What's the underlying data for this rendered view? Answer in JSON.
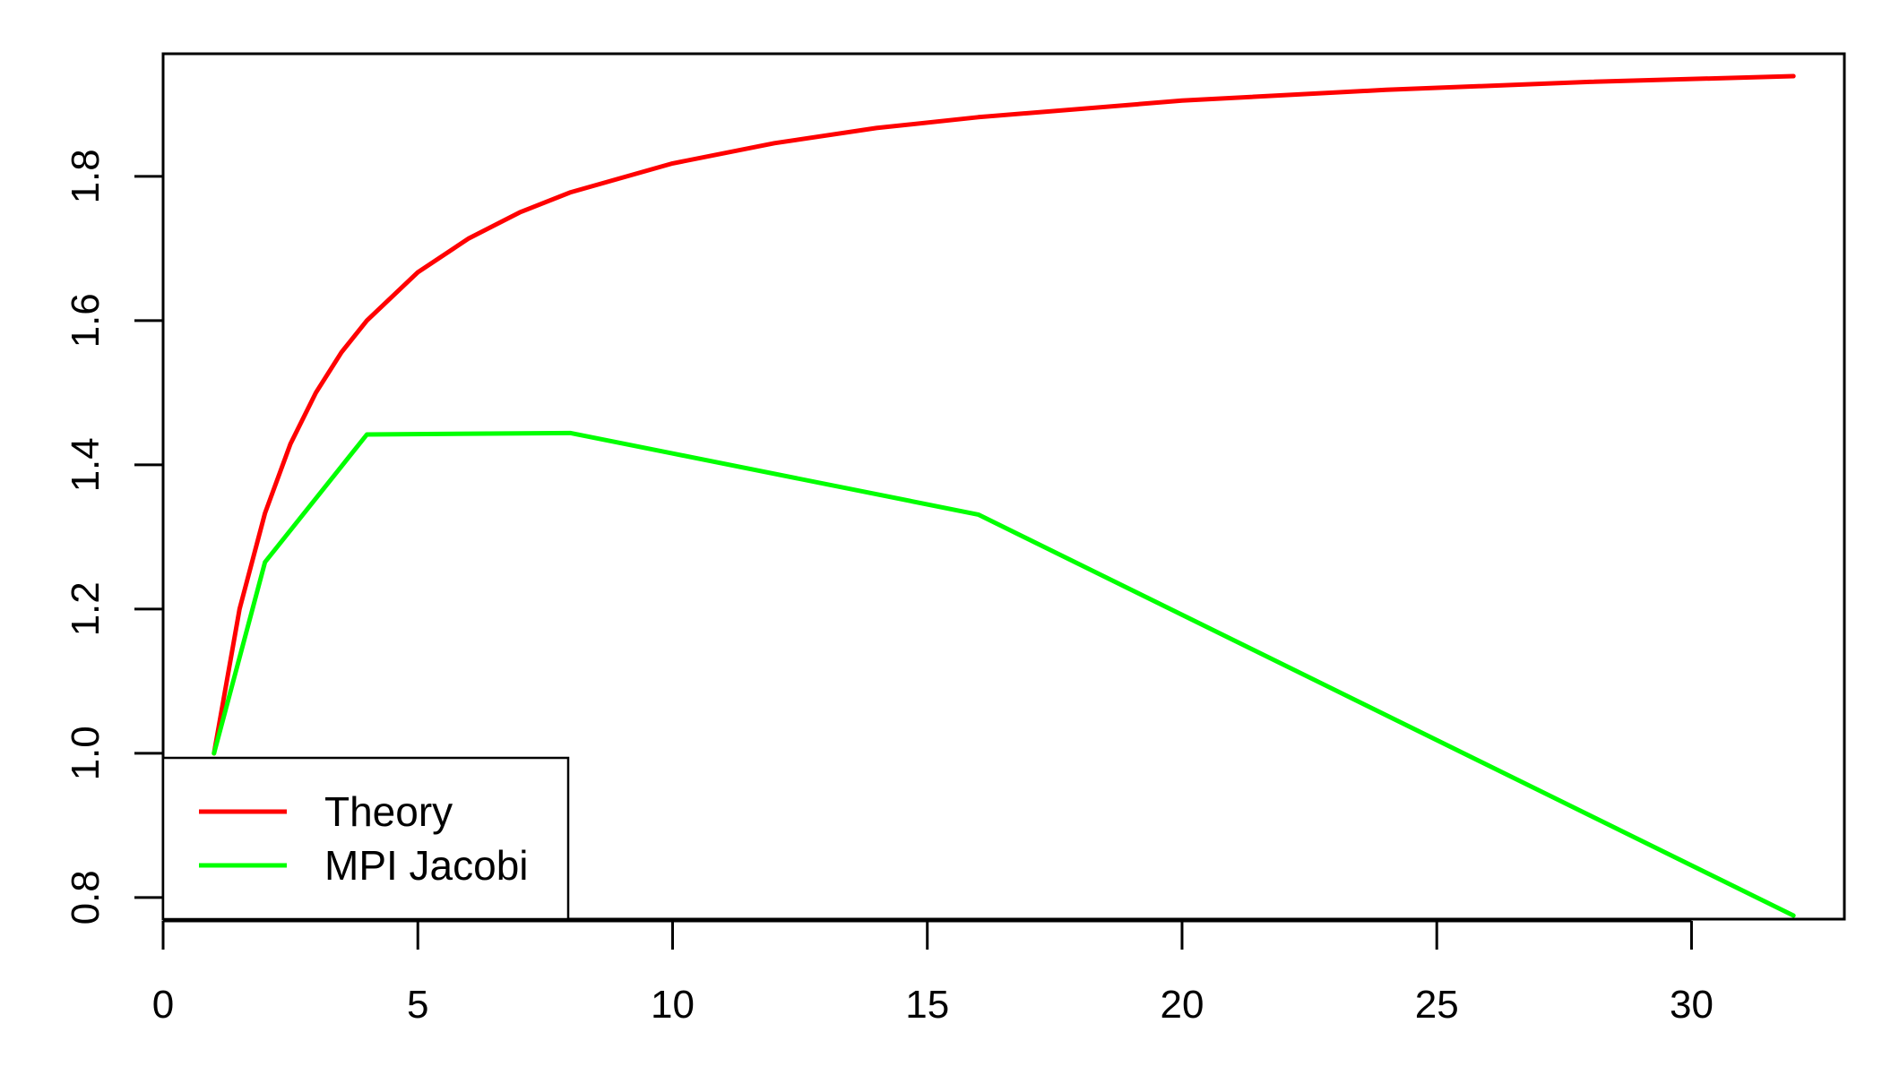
{
  "chart_data": {
    "type": "line",
    "title": "",
    "xlabel": "",
    "ylabel": "",
    "xlim": [
      0,
      33
    ],
    "ylim": [
      0.77,
      1.97
    ],
    "xticks": [
      0,
      5,
      10,
      15,
      20,
      25,
      30
    ],
    "yticks": [
      0.8,
      1.0,
      1.2,
      1.4,
      1.6,
      1.8
    ],
    "xtick_labels": [
      "0",
      "5",
      "10",
      "15",
      "20",
      "25",
      "30"
    ],
    "ytick_labels": [
      "0.8",
      "1.0",
      "1.2",
      "1.4",
      "1.6",
      "1.8"
    ],
    "grid": false,
    "legend_position": "bottom-left",
    "series": [
      {
        "name": "Theory",
        "color": "#ff0000",
        "x": [
          1,
          1.5,
          2,
          2.5,
          3,
          3.5,
          4,
          5,
          6,
          7,
          8,
          10,
          12,
          14,
          16,
          20,
          24,
          28,
          32
        ],
        "y": [
          1.0,
          1.2,
          1.333,
          1.429,
          1.5,
          1.556,
          1.6,
          1.667,
          1.714,
          1.75,
          1.778,
          1.818,
          1.846,
          1.867,
          1.882,
          1.905,
          1.92,
          1.931,
          1.939
        ]
      },
      {
        "name": "MPI Jacobi",
        "color": "#00ff00",
        "x": [
          1,
          2,
          4,
          8,
          16,
          32
        ],
        "y": [
          1.0,
          1.265,
          1.442,
          1.444,
          1.331,
          0.775
        ]
      }
    ]
  }
}
